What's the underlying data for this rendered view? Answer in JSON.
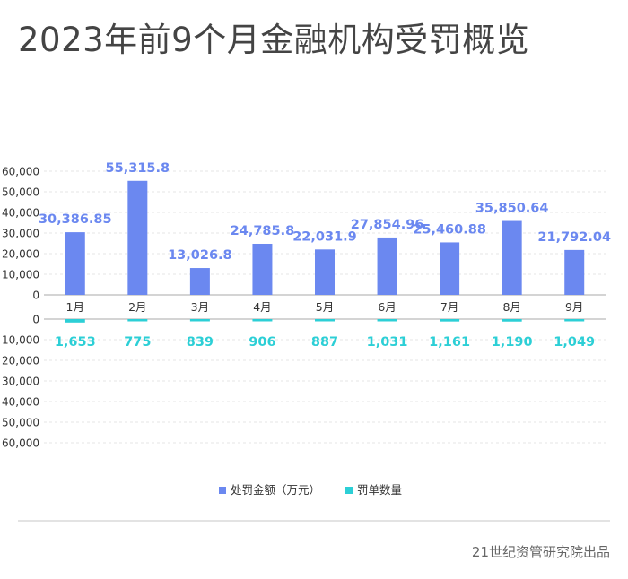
{
  "title": "2023年前9个月金融机构受罚概览",
  "source": "21世纪资管研究院出品",
  "chart_data": {
    "type": "bar",
    "categories": [
      "1月",
      "2月",
      "3月",
      "4月",
      "5月",
      "6月",
      "7月",
      "8月",
      "9月"
    ],
    "series": [
      {
        "name": "处罚金额（万元）",
        "values": [
          30386.85,
          55315.8,
          13026.8,
          24785.8,
          22031.9,
          27854.96,
          25460.88,
          35850.64,
          21792.04
        ],
        "labels": [
          "30,386.85",
          "55,315.8",
          "13,026.8",
          "24,785.8",
          "22,031.9",
          "27,854.96",
          "25,460.88",
          "35,850.64",
          "21,792.04"
        ],
        "color": "#6b88f0"
      },
      {
        "name": "罚单数量",
        "values": [
          1653,
          775,
          839,
          906,
          887,
          1031,
          1161,
          1190,
          1049
        ],
        "labels": [
          "1,653",
          "775",
          "839",
          "906",
          "887",
          "1,031",
          "1,161",
          "1,190",
          "1,049"
        ],
        "color": "#2ccfd6"
      }
    ],
    "upper_axis": {
      "ylim": [
        0,
        60000
      ],
      "tick_labels": [
        "0",
        "10,000",
        "20,000",
        "30,000",
        "40,000",
        "50,000",
        "60,000"
      ]
    },
    "lower_axis": {
      "ylim": [
        0,
        60000
      ],
      "tick_labels": [
        "0",
        "10,000",
        "20,000",
        "30,000",
        "40,000",
        "50,000",
        "60,000"
      ]
    },
    "grid": true,
    "legend_position": "bottom"
  }
}
